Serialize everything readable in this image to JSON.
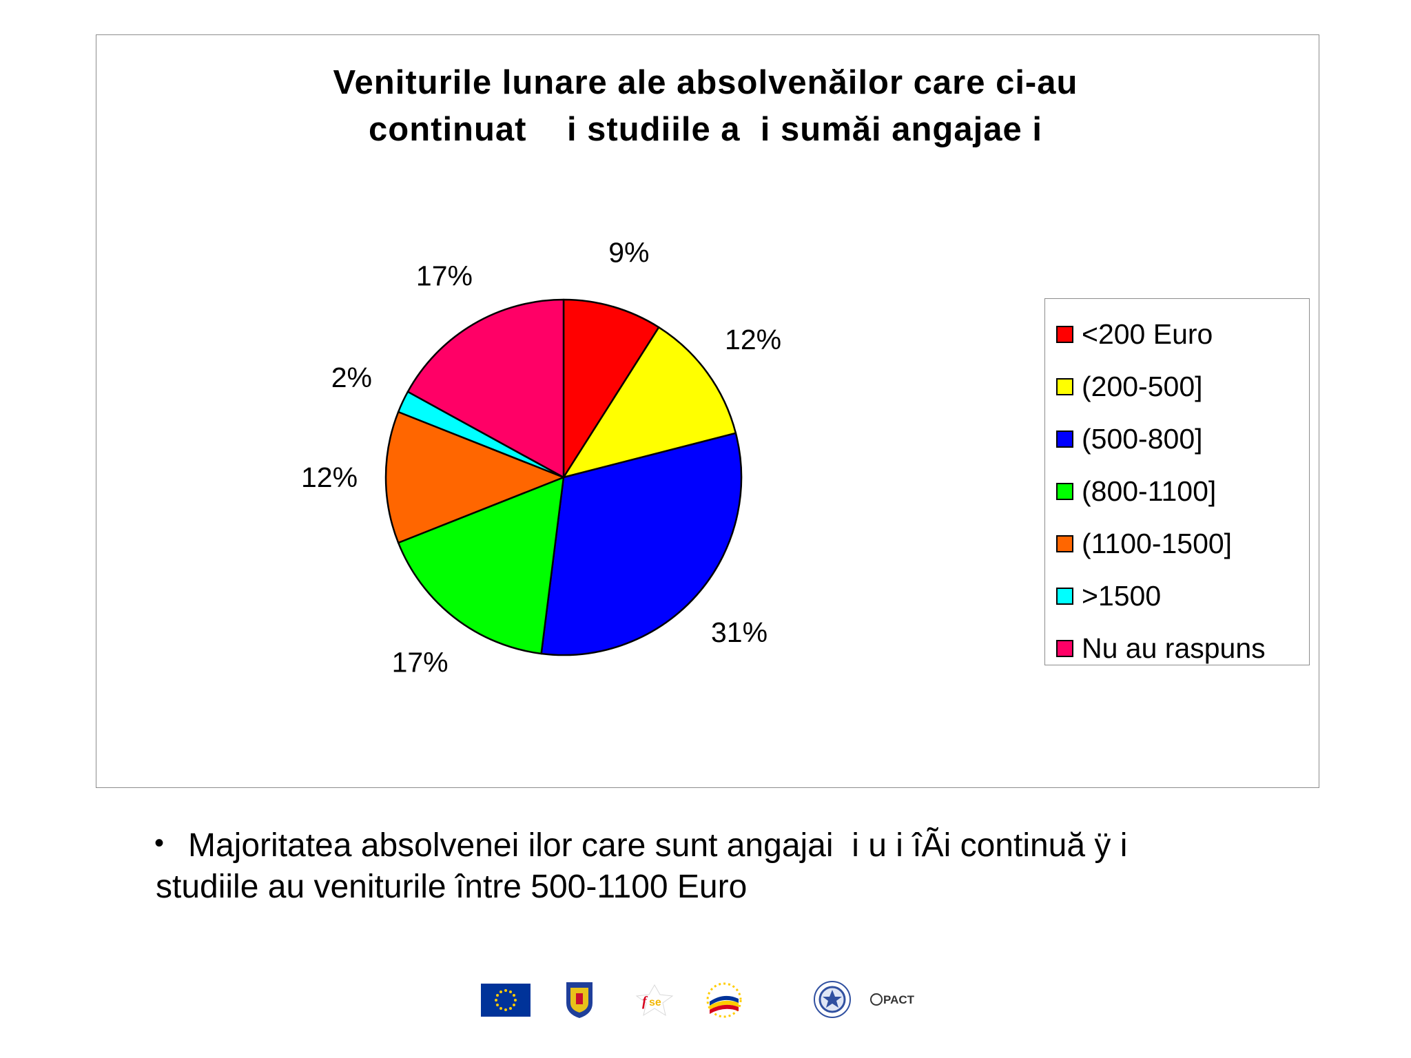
{
  "chart_data": {
    "type": "pie",
    "title_lines": [
      "Veniturile lunare ale absolvenăilor care ci-au",
      "continuat    i studiile a  i sumăi angajae i"
    ],
    "categories": [
      "<200 Euro",
      "(200-500]",
      "(500-800]",
      "(800-1100]",
      "(1100-1500]",
      ">1500",
      "Nu au raspuns"
    ],
    "values": [
      9,
      12,
      31,
      17,
      12,
      2,
      17
    ],
    "labels": [
      "9%",
      "12%",
      "31%",
      "17%",
      "12%",
      "2%",
      "17%"
    ],
    "colors": [
      "#ff0000",
      "#ffff00",
      "#0000ff",
      "#00ff00",
      "#ff6600",
      "#00ffff",
      "#ff0066"
    ],
    "legend_position": "right"
  },
  "bullet": {
    "symbol": "•",
    "line1": "Majoritatea absolvenei ilor care sunt angajai  i u i îÃi continuă ÿ i",
    "line2": "studiile au veniturile între 500-1100 Euro"
  },
  "footer": {
    "logos": [
      {
        "icon": "eu-flag-icon",
        "colors": [
          "#003399",
          "#ffcc00"
        ]
      },
      {
        "icon": "romania-coat-of-arms-icon",
        "colors": [
          "#1f3f9a",
          "#e8c21a",
          "#c8102e"
        ]
      },
      {
        "icon": "fse-logo-icon",
        "colors": [
          "#d6001c",
          "#f2b600"
        ]
      },
      {
        "icon": "structural-instruments-logo-icon",
        "colors": [
          "#003399",
          "#ffcc00",
          "#d6001c"
        ]
      },
      {
        "icon": "cnsis-logo-icon",
        "colors": [
          "#3050a0"
        ]
      },
      {
        "icon": "pact-logo-icon",
        "text": "PACT"
      }
    ]
  }
}
